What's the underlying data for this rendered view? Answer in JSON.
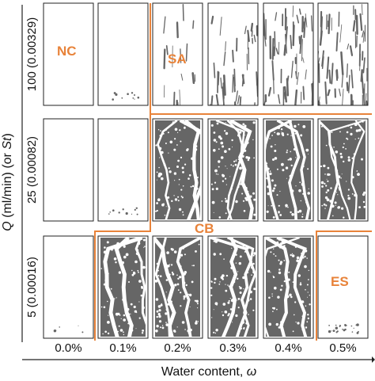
{
  "figure": {
    "x_axis_label_prefix": "Water content,",
    "x_axis_label_symbol": "ω",
    "y_axis_label_symbol_Q": "Q",
    "y_axis_label_middle": "(ml/min) (or",
    "y_axis_label_symbol_St": "St",
    "y_axis_label_suffix": ")",
    "column_labels": [
      "0.0%",
      "0.1%",
      "0.2%",
      "0.3%",
      "0.4%",
      "0.5%"
    ],
    "row_labels": [
      "100 (0.00329)",
      "25 (0.00082)",
      "5 (0.00016)"
    ],
    "regimes": [
      {
        "label": "NC",
        "color": "#e8833a"
      },
      {
        "label": "SA",
        "color": "#e8833a"
      },
      {
        "label": "CB",
        "color": "#e8833a"
      },
      {
        "label": "ES",
        "color": "#e8833a"
      }
    ],
    "panel_fill_level": [
      [
        0.0,
        0.02,
        0.12,
        0.28,
        0.4,
        0.45
      ],
      [
        0.0,
        0.02,
        0.78,
        0.82,
        0.85,
        0.62
      ],
      [
        0.01,
        0.9,
        0.88,
        0.86,
        0.88,
        0.05
      ]
    ],
    "colors": {
      "regime_line": "#e8833a",
      "pattern": "#666666",
      "frame": "#222222"
    }
  }
}
